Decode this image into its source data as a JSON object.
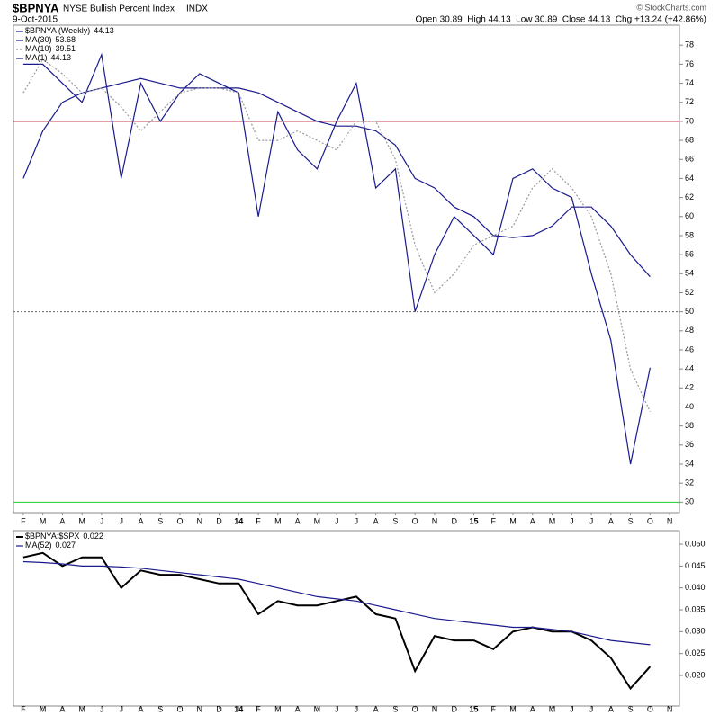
{
  "chart_data": [
    {
      "type": "line",
      "title": "$BPNYA",
      "subtitle": "NYSE Bullish Percent Index",
      "exchange": "INDX",
      "date": "9-Oct-2015",
      "quote": "Open 30.89  High 44.13  Low 30.89  Close 44.13  Chg +13.24 (+42.86%)",
      "watermark": "© StockCharts.com",
      "categories": [
        "F",
        "M",
        "A",
        "M",
        "J",
        "J",
        "A",
        "S",
        "O",
        "N",
        "D",
        "14",
        "F",
        "M",
        "A",
        "M",
        "J",
        "J",
        "A",
        "S",
        "O",
        "N",
        "D",
        "15",
        "F",
        "M",
        "A",
        "M",
        "J",
        "J",
        "A",
        "S",
        "O",
        "N"
      ],
      "series": [
        {
          "name": "$BPNYA (Weekly)",
          "last": 44.13,
          "color": "#1a1a8c",
          "style": "solid",
          "values": [
            76,
            76,
            74,
            72,
            77,
            64,
            74,
            70,
            73,
            75,
            74,
            73,
            60,
            71,
            67,
            65,
            70,
            74,
            63,
            65,
            50,
            56,
            60,
            58,
            56,
            64,
            65,
            63,
            62,
            54,
            47,
            34,
            44.13,
            null
          ]
        },
        {
          "name": "MA(30)",
          "last": 53.68,
          "color": "#1a1a8c",
          "style": "solid",
          "values": [
            64,
            69,
            72,
            73,
            73.5,
            74,
            74.5,
            74,
            73.5,
            73.5,
            73.5,
            73.5,
            73,
            72,
            71,
            70,
            69.5,
            69.5,
            69,
            67.5,
            64,
            63,
            61,
            60,
            58,
            57.8,
            58,
            59,
            61,
            61,
            59,
            56,
            53.68,
            null
          ]
        },
        {
          "name": "MA(10)",
          "last": 39.51,
          "color": "#999999",
          "style": "dotted",
          "values": [
            73,
            76.5,
            75,
            73,
            73.5,
            71.5,
            69,
            71,
            73,
            73.5,
            73.5,
            73,
            68,
            68,
            69,
            68,
            67,
            70,
            70,
            66,
            57,
            52,
            54,
            57,
            58,
            59,
            63,
            65,
            63,
            60,
            54,
            44,
            39.51,
            null
          ]
        },
        {
          "name": "MA(1)",
          "last": 44.13,
          "color": "#1a1a8c",
          "style": "solid",
          "legend_only": true
        }
      ],
      "reference_lines": [
        {
          "value": 70,
          "color": "#b0002a",
          "style": "solid"
        },
        {
          "value": 50,
          "color": "#666666",
          "style": "dotted"
        },
        {
          "value": 30,
          "color": "#22cc22",
          "style": "solid"
        }
      ],
      "ylim": [
        28.9,
        80.1
      ],
      "yticks": [
        30,
        32,
        34,
        36,
        38,
        40,
        42,
        44,
        46,
        48,
        50,
        52,
        54,
        56,
        58,
        60,
        62,
        64,
        66,
        68,
        70,
        72,
        74,
        76,
        78
      ],
      "grid": false,
      "legend": "upper left"
    },
    {
      "type": "line",
      "categories": [
        "F",
        "M",
        "A",
        "M",
        "J",
        "J",
        "A",
        "S",
        "O",
        "N",
        "D",
        "14",
        "F",
        "M",
        "A",
        "M",
        "J",
        "J",
        "A",
        "S",
        "O",
        "N",
        "D",
        "15",
        "F",
        "M",
        "A",
        "M",
        "J",
        "J",
        "A",
        "S",
        "O",
        "N"
      ],
      "series": [
        {
          "name": "$BPNYA:$SPX",
          "last": 0.022,
          "color": "#000000",
          "style": "thick",
          "values": [
            0.047,
            0.048,
            0.045,
            0.047,
            0.047,
            0.04,
            0.044,
            0.043,
            0.043,
            0.042,
            0.041,
            0.041,
            0.034,
            0.037,
            0.036,
            0.036,
            0.037,
            0.038,
            0.034,
            0.033,
            0.021,
            0.029,
            0.028,
            0.028,
            0.026,
            0.03,
            0.031,
            0.03,
            0.03,
            0.028,
            0.024,
            0.017,
            0.022,
            null
          ]
        },
        {
          "name": "MA(52)",
          "last": 0.027,
          "color": "#1a1a8c",
          "style": "solid",
          "values": [
            0.046,
            0.0458,
            0.0455,
            0.045,
            0.045,
            0.0448,
            0.0445,
            0.044,
            0.0435,
            0.043,
            0.0425,
            0.042,
            0.041,
            0.04,
            0.039,
            0.038,
            0.0375,
            0.037,
            0.036,
            0.035,
            0.034,
            0.033,
            0.0325,
            0.032,
            0.0315,
            0.031,
            0.031,
            0.0305,
            0.03,
            0.029,
            0.028,
            0.0275,
            0.027,
            null
          ]
        }
      ],
      "ylim": [
        0.013,
        0.0531
      ],
      "yticks": [
        {
          "value": 0.02,
          "label": "0.020"
        },
        {
          "value": 0.025,
          "label": "0.025"
        },
        {
          "value": 0.03,
          "label": "0.030"
        },
        {
          "value": 0.035,
          "label": "0.035"
        },
        {
          "value": 0.04,
          "label": "0.040"
        },
        {
          "value": 0.045,
          "label": "0.045"
        },
        {
          "value": 0.05,
          "label": "0.050"
        }
      ],
      "grid": false,
      "legend": "upper left"
    }
  ]
}
